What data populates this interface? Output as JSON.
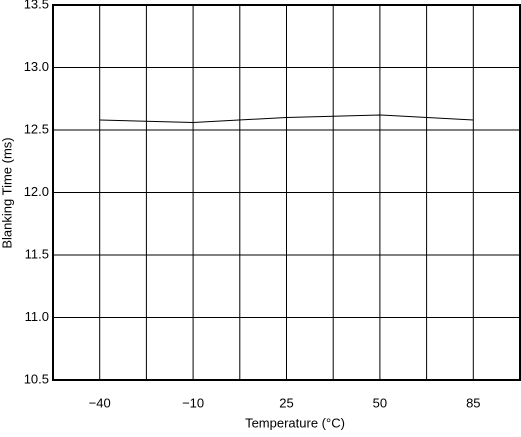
{
  "chart_data": {
    "type": "line",
    "x_label": "Temperature (°C)",
    "y_label": "Blanking Time (ms)",
    "categories": [
      "−40",
      "−10",
      "25",
      "50",
      "85"
    ],
    "values": [
      12.58,
      12.56,
      12.6,
      12.62,
      12.58
    ],
    "color": "#000000",
    "ylim": [
      10.5,
      13.5
    ],
    "yticks": [
      10.5,
      {
        "value": 11,
        "label": "11.0"
      },
      11.5,
      {
        "value": 12,
        "label": "12.0"
      },
      12.5,
      {
        "value": 13,
        "label": "13.0"
      },
      13.5
    ],
    "grid": true
  }
}
